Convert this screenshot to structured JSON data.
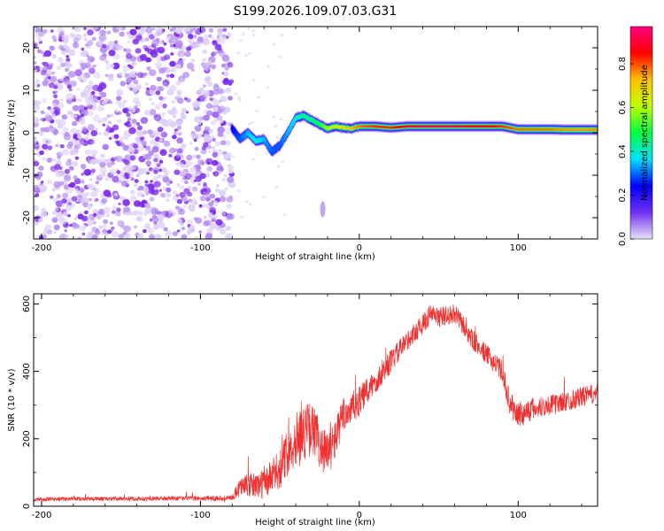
{
  "title": "S199.2026.109.07.03.G31",
  "chart_data": [
    {
      "type": "heatmap",
      "name": "spectrogram",
      "xlabel": "Height of straight line (km)",
      "ylabel": "Frequency (Hz)",
      "xlim": [
        -205,
        150
      ],
      "ylim": [
        -25,
        25
      ],
      "xticks": [
        -200,
        -100,
        0,
        100
      ],
      "yticks": [
        -20,
        -10,
        0,
        10,
        20
      ],
      "colorbar": {
        "label": "Normalized spectral amplitude",
        "range": [
          0,
          0.97
        ],
        "ticks": [
          0.0,
          0.2,
          0.4,
          0.6,
          0.8
        ],
        "tick_labels": [
          "0.0",
          "0.2",
          "0.4",
          "0.6",
          "0.8"
        ],
        "colormap": [
          "#e8e0f8",
          "#7030f0",
          "#0000ff",
          "#00e0ff",
          "#00ff40",
          "#c0ff00",
          "#ffc000",
          "#ff0000",
          "#ff0080"
        ]
      },
      "noise_region_x": [
        -205,
        -80
      ],
      "ridge": {
        "x": [
          -80,
          -75,
          -70,
          -65,
          -60,
          -55,
          -50,
          -45,
          -40,
          -35,
          -30,
          -25,
          -20,
          -15,
          -10,
          -5,
          0,
          10,
          20,
          30,
          40,
          50,
          60,
          70,
          80,
          90,
          100,
          110,
          120,
          130,
          140,
          150
        ],
        "freq": [
          1.0,
          -1.5,
          0.0,
          -2.0,
          -1.5,
          -4.5,
          -3.0,
          0.0,
          3.5,
          4.0,
          3.0,
          2.0,
          1.0,
          1.5,
          1.2,
          1.0,
          1.5,
          1.5,
          1.2,
          1.5,
          1.5,
          1.5,
          1.5,
          1.5,
          1.5,
          1.5,
          0.8,
          0.8,
          0.8,
          0.7,
          0.7,
          0.7
        ],
        "amplitude": [
          0.25,
          0.3,
          0.35,
          0.4,
          0.35,
          0.3,
          0.3,
          0.35,
          0.4,
          0.45,
          0.45,
          0.5,
          0.6,
          0.65,
          0.7,
          0.75,
          0.8,
          0.85,
          0.85,
          0.9,
          0.95,
          0.95,
          0.95,
          0.9,
          0.9,
          0.85,
          0.8,
          0.8,
          0.8,
          0.78,
          0.78,
          0.78
        ]
      },
      "isolated_blob": {
        "x": -23,
        "freq": -18
      }
    },
    {
      "type": "line",
      "name": "snr",
      "xlabel": "Height of straight line (km)",
      "ylabel": "SNR (10 * v/v)",
      "xlim": [
        -205,
        150
      ],
      "ylim": [
        0,
        630
      ],
      "xticks": [
        -200,
        -100,
        0,
        100
      ],
      "yticks": [
        0,
        200,
        400,
        600
      ],
      "color": "#f03030",
      "series": [
        {
          "name": "SNR",
          "x": [
            -205,
            -180,
            -150,
            -120,
            -100,
            -80,
            -75,
            -70,
            -60,
            -50,
            -45,
            -40,
            -35,
            -30,
            -25,
            -20,
            -15,
            -10,
            -5,
            0,
            10,
            20,
            30,
            40,
            45,
            50,
            60,
            65,
            70,
            80,
            90,
            95,
            100,
            110,
            120,
            130,
            140,
            150
          ],
          "y": [
            20,
            22,
            22,
            23,
            23,
            25,
            60,
            60,
            65,
            110,
            160,
            200,
            220,
            230,
            190,
            150,
            200,
            270,
            290,
            310,
            370,
            430,
            490,
            540,
            570,
            560,
            570,
            540,
            500,
            450,
            400,
            300,
            270,
            290,
            300,
            310,
            325,
            335
          ],
          "noise": [
            6,
            6,
            6,
            7,
            7,
            8,
            30,
            35,
            45,
            60,
            70,
            80,
            85,
            80,
            75,
            70,
            60,
            55,
            50,
            45,
            40,
            35,
            30,
            30,
            30,
            30,
            30,
            30,
            30,
            30,
            32,
            35,
            40,
            35,
            30,
            30,
            30,
            28
          ]
        }
      ]
    }
  ]
}
